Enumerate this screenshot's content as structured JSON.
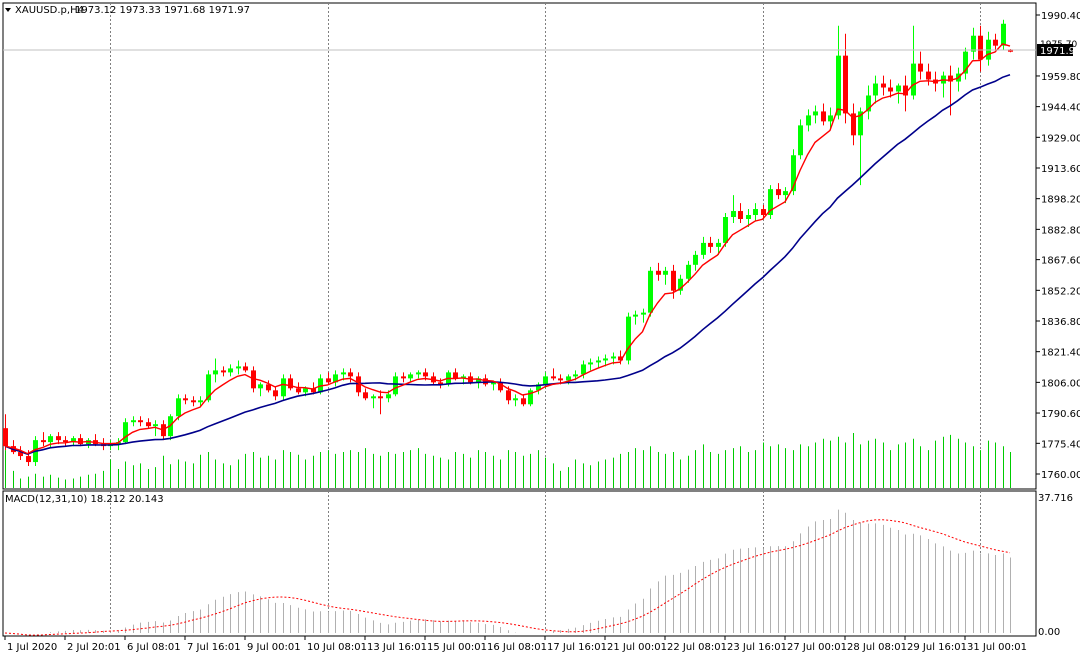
{
  "header": {
    "symbol": "XAUUSD.p,H4",
    "ohlc": "1973.12 1973.33 1971.68 1971.97",
    "current_price": "1971.97",
    "current_price_partial": "1975.70"
  },
  "macd": {
    "label": "MACD(12,31,10) 18.212 20.143",
    "top_label": "37.716",
    "bottom_label": "0.00",
    "bottom_label_overlap": "0.895"
  },
  "colors": {
    "background": "#ffffff",
    "bull": "#00ff00",
    "bear": "#ff0000",
    "fast_ma": "#ff0000",
    "slow_ma": "#00008b",
    "volume": "#00cc00",
    "macd_hist": "#b0b0b0",
    "macd_signal": "#ff0000",
    "grid": "#808080",
    "price_line": "#c0c0c0",
    "price_tag_bg": "#000000",
    "price_tag_fg": "#ffffff"
  },
  "chart_data": {
    "type": "candlestick",
    "price_axis": {
      "labels": [
        "1990.40",
        "1975.70",
        "1959.80",
        "1944.40",
        "1929.00",
        "1913.60",
        "1898.20",
        "1882.80",
        "1867.60",
        "1852.20",
        "1836.80",
        "1821.40",
        "1806.00",
        "1790.60",
        "1775.40",
        "1760.00"
      ],
      "min": 1760.0,
      "max": 1990.4
    },
    "time_axis": {
      "labels": [
        "1 Jul 2020",
        "2 Jul 20:01",
        "6 Jul 08:01",
        "7 Jul 16:01",
        "9 Jul 00:01",
        "10 Jul 08:01",
        "13 Jul 16:01",
        "15 Jul 00:01",
        "16 Jul 08:01",
        "17 Jul 16:01",
        "21 Jul 00:01",
        "22 Jul 08:01",
        "23 Jul 16:01",
        "27 Jul 00:01",
        "28 Jul 08:01",
        "29 Jul 16:01",
        "31 Jul 00:01"
      ],
      "label_bar_index": [
        0,
        8,
        16,
        24,
        32,
        40,
        48,
        56,
        64,
        72,
        80,
        88,
        96,
        104,
        112,
        120,
        128
      ],
      "separator_bar_index": [
        14,
        43,
        72,
        101,
        130
      ]
    },
    "candles": [
      {
        "o": 1783.0,
        "h": 1790.0,
        "l": 1772.0,
        "c": 1774.0
      },
      {
        "o": 1774.0,
        "h": 1777.0,
        "l": 1770.0,
        "c": 1771.0
      },
      {
        "o": 1771.0,
        "h": 1774.0,
        "l": 1767.0,
        "c": 1769.0
      },
      {
        "o": 1769.0,
        "h": 1772.0,
        "l": 1764.0,
        "c": 1766.0
      },
      {
        "o": 1766.0,
        "h": 1779.0,
        "l": 1764.0,
        "c": 1777.0
      },
      {
        "o": 1777.0,
        "h": 1781.0,
        "l": 1774.0,
        "c": 1776.0
      },
      {
        "o": 1776.0,
        "h": 1780.0,
        "l": 1773.0,
        "c": 1779.0
      },
      {
        "o": 1779.0,
        "h": 1781.0,
        "l": 1775.0,
        "c": 1777.0
      },
      {
        "o": 1777.0,
        "h": 1779.0,
        "l": 1774.0,
        "c": 1776.0
      },
      {
        "o": 1776.0,
        "h": 1779.0,
        "l": 1774.0,
        "c": 1778.0
      },
      {
        "o": 1778.0,
        "h": 1780.0,
        "l": 1774.0,
        "c": 1775.0
      },
      {
        "o": 1775.0,
        "h": 1778.0,
        "l": 1773.0,
        "c": 1777.0
      },
      {
        "o": 1777.0,
        "h": 1780.0,
        "l": 1774.0,
        "c": 1775.0
      },
      {
        "o": 1775.0,
        "h": 1778.0,
        "l": 1772.0,
        "c": 1774.0
      },
      {
        "o": 1774.0,
        "h": 1777.0,
        "l": 1772.0,
        "c": 1775.0
      },
      {
        "o": 1775.0,
        "h": 1778.0,
        "l": 1772.0,
        "c": 1776.0
      },
      {
        "o": 1776.0,
        "h": 1788.0,
        "l": 1775.0,
        "c": 1786.0
      },
      {
        "o": 1786.0,
        "h": 1789.0,
        "l": 1784.0,
        "c": 1787.0
      },
      {
        "o": 1787.0,
        "h": 1789.0,
        "l": 1784.0,
        "c": 1786.0
      },
      {
        "o": 1786.0,
        "h": 1788.0,
        "l": 1783.0,
        "c": 1784.0
      },
      {
        "o": 1784.0,
        "h": 1787.0,
        "l": 1779.0,
        "c": 1785.0
      },
      {
        "o": 1785.0,
        "h": 1787.0,
        "l": 1777.0,
        "c": 1779.0
      },
      {
        "o": 1779.0,
        "h": 1790.0,
        "l": 1777.0,
        "c": 1789.0
      },
      {
        "o": 1789.0,
        "h": 1800.0,
        "l": 1787.0,
        "c": 1798.0
      },
      {
        "o": 1798.0,
        "h": 1800.0,
        "l": 1795.0,
        "c": 1797.0
      },
      {
        "o": 1797.0,
        "h": 1799.0,
        "l": 1794.0,
        "c": 1796.0
      },
      {
        "o": 1796.0,
        "h": 1799.0,
        "l": 1794.0,
        "c": 1797.0
      },
      {
        "o": 1797.0,
        "h": 1812.0,
        "l": 1796.0,
        "c": 1810.0
      },
      {
        "o": 1810.0,
        "h": 1818.0,
        "l": 1806.0,
        "c": 1812.0
      },
      {
        "o": 1812.0,
        "h": 1814.0,
        "l": 1809.0,
        "c": 1811.0
      },
      {
        "o": 1811.0,
        "h": 1815.0,
        "l": 1809.0,
        "c": 1813.0
      },
      {
        "o": 1813.0,
        "h": 1817.0,
        "l": 1810.0,
        "c": 1814.0
      },
      {
        "o": 1814.0,
        "h": 1816.0,
        "l": 1811.0,
        "c": 1812.0
      },
      {
        "o": 1812.0,
        "h": 1814.0,
        "l": 1801.0,
        "c": 1803.0
      },
      {
        "o": 1803.0,
        "h": 1806.0,
        "l": 1799.0,
        "c": 1805.0
      },
      {
        "o": 1805.0,
        "h": 1807.0,
        "l": 1801.0,
        "c": 1802.0
      },
      {
        "o": 1802.0,
        "h": 1804.0,
        "l": 1797.0,
        "c": 1799.0
      },
      {
        "o": 1799.0,
        "h": 1810.0,
        "l": 1797.0,
        "c": 1808.0
      },
      {
        "o": 1808.0,
        "h": 1810.0,
        "l": 1802.0,
        "c": 1803.0
      },
      {
        "o": 1803.0,
        "h": 1806.0,
        "l": 1800.0,
        "c": 1801.0
      },
      {
        "o": 1801.0,
        "h": 1804.0,
        "l": 1799.0,
        "c": 1803.0
      },
      {
        "o": 1803.0,
        "h": 1806.0,
        "l": 1800.0,
        "c": 1801.0
      },
      {
        "o": 1801.0,
        "h": 1810.0,
        "l": 1800.0,
        "c": 1808.0
      },
      {
        "o": 1808.0,
        "h": 1811.0,
        "l": 1805.0,
        "c": 1806.0
      },
      {
        "o": 1806.0,
        "h": 1812.0,
        "l": 1804.0,
        "c": 1810.0
      },
      {
        "o": 1810.0,
        "h": 1813.0,
        "l": 1807.0,
        "c": 1811.0
      },
      {
        "o": 1811.0,
        "h": 1813.0,
        "l": 1806.0,
        "c": 1809.0
      },
      {
        "o": 1809.0,
        "h": 1811.0,
        "l": 1799.0,
        "c": 1801.0
      },
      {
        "o": 1801.0,
        "h": 1803.0,
        "l": 1797.0,
        "c": 1798.0
      },
      {
        "o": 1798.0,
        "h": 1800.0,
        "l": 1793.0,
        "c": 1799.0
      },
      {
        "o": 1799.0,
        "h": 1802.0,
        "l": 1790.0,
        "c": 1798.0
      },
      {
        "o": 1798.0,
        "h": 1802.0,
        "l": 1796.0,
        "c": 1800.0
      },
      {
        "o": 1800.0,
        "h": 1811.0,
        "l": 1799.0,
        "c": 1809.0
      },
      {
        "o": 1809.0,
        "h": 1811.0,
        "l": 1806.0,
        "c": 1808.0
      },
      {
        "o": 1808.0,
        "h": 1811.0,
        "l": 1806.0,
        "c": 1810.0
      },
      {
        "o": 1810.0,
        "h": 1812.0,
        "l": 1808.0,
        "c": 1811.0
      },
      {
        "o": 1811.0,
        "h": 1813.0,
        "l": 1807.0,
        "c": 1809.0
      },
      {
        "o": 1809.0,
        "h": 1811.0,
        "l": 1805.0,
        "c": 1806.0
      },
      {
        "o": 1806.0,
        "h": 1808.0,
        "l": 1803.0,
        "c": 1805.0
      },
      {
        "o": 1805.0,
        "h": 1812.0,
        "l": 1804.0,
        "c": 1811.0
      },
      {
        "o": 1811.0,
        "h": 1813.0,
        "l": 1807.0,
        "c": 1808.0
      },
      {
        "o": 1808.0,
        "h": 1810.0,
        "l": 1805.0,
        "c": 1809.0
      },
      {
        "o": 1809.0,
        "h": 1811.0,
        "l": 1805.0,
        "c": 1806.0
      },
      {
        "o": 1806.0,
        "h": 1809.0,
        "l": 1803.0,
        "c": 1808.0
      },
      {
        "o": 1808.0,
        "h": 1810.0,
        "l": 1804.0,
        "c": 1805.0
      },
      {
        "o": 1805.0,
        "h": 1807.0,
        "l": 1802.0,
        "c": 1806.0
      },
      {
        "o": 1806.0,
        "h": 1808.0,
        "l": 1801.0,
        "c": 1802.0
      },
      {
        "o": 1802.0,
        "h": 1804.0,
        "l": 1795.0,
        "c": 1797.0
      },
      {
        "o": 1797.0,
        "h": 1800.0,
        "l": 1794.0,
        "c": 1798.0
      },
      {
        "o": 1798.0,
        "h": 1800.0,
        "l": 1794.0,
        "c": 1795.0
      },
      {
        "o": 1795.0,
        "h": 1803.0,
        "l": 1794.0,
        "c": 1802.0
      },
      {
        "o": 1802.0,
        "h": 1806.0,
        "l": 1800.0,
        "c": 1805.0
      },
      {
        "o": 1805.0,
        "h": 1811.0,
        "l": 1803.0,
        "c": 1809.0
      },
      {
        "o": 1809.0,
        "h": 1813.0,
        "l": 1807.0,
        "c": 1808.0
      },
      {
        "o": 1808.0,
        "h": 1810.0,
        "l": 1805.0,
        "c": 1807.0
      },
      {
        "o": 1807.0,
        "h": 1810.0,
        "l": 1805.0,
        "c": 1809.0
      },
      {
        "o": 1809.0,
        "h": 1812.0,
        "l": 1807.0,
        "c": 1810.0
      },
      {
        "o": 1810.0,
        "h": 1817.0,
        "l": 1808.0,
        "c": 1815.0
      },
      {
        "o": 1815.0,
        "h": 1818.0,
        "l": 1812.0,
        "c": 1816.0
      },
      {
        "o": 1816.0,
        "h": 1819.0,
        "l": 1813.0,
        "c": 1817.0
      },
      {
        "o": 1817.0,
        "h": 1820.0,
        "l": 1814.0,
        "c": 1818.0
      },
      {
        "o": 1818.0,
        "h": 1821.0,
        "l": 1815.0,
        "c": 1819.0
      },
      {
        "o": 1819.0,
        "h": 1822.0,
        "l": 1815.0,
        "c": 1817.0
      },
      {
        "o": 1817.0,
        "h": 1841.0,
        "l": 1815.0,
        "c": 1839.0
      },
      {
        "o": 1839.0,
        "h": 1842.0,
        "l": 1835.0,
        "c": 1840.0
      },
      {
        "o": 1840.0,
        "h": 1843.0,
        "l": 1836.0,
        "c": 1841.0
      },
      {
        "o": 1841.0,
        "h": 1864.0,
        "l": 1839.0,
        "c": 1862.0
      },
      {
        "o": 1862.0,
        "h": 1866.0,
        "l": 1857.0,
        "c": 1860.0
      },
      {
        "o": 1860.0,
        "h": 1864.0,
        "l": 1855.0,
        "c": 1862.0
      },
      {
        "o": 1862.0,
        "h": 1865.0,
        "l": 1848.0,
        "c": 1852.0
      },
      {
        "o": 1852.0,
        "h": 1860.0,
        "l": 1850.0,
        "c": 1858.0
      },
      {
        "o": 1858.0,
        "h": 1867.0,
        "l": 1856.0,
        "c": 1865.0
      },
      {
        "o": 1865.0,
        "h": 1872.0,
        "l": 1862.0,
        "c": 1870.0
      },
      {
        "o": 1870.0,
        "h": 1879.0,
        "l": 1868.0,
        "c": 1876.0
      },
      {
        "o": 1876.0,
        "h": 1879.0,
        "l": 1871.0,
        "c": 1874.0
      },
      {
        "o": 1874.0,
        "h": 1878.0,
        "l": 1870.0,
        "c": 1876.0
      },
      {
        "o": 1876.0,
        "h": 1891.0,
        "l": 1874.0,
        "c": 1889.0
      },
      {
        "o": 1889.0,
        "h": 1900.0,
        "l": 1886.0,
        "c": 1892.0
      },
      {
        "o": 1892.0,
        "h": 1896.0,
        "l": 1886.0,
        "c": 1888.0
      },
      {
        "o": 1888.0,
        "h": 1893.0,
        "l": 1884.0,
        "c": 1890.0
      },
      {
        "o": 1890.0,
        "h": 1896.0,
        "l": 1887.0,
        "c": 1893.0
      },
      {
        "o": 1893.0,
        "h": 1895.0,
        "l": 1888.0,
        "c": 1890.0
      },
      {
        "o": 1890.0,
        "h": 1905.0,
        "l": 1888.0,
        "c": 1903.0
      },
      {
        "o": 1903.0,
        "h": 1906.0,
        "l": 1898.0,
        "c": 1900.0
      },
      {
        "o": 1900.0,
        "h": 1904.0,
        "l": 1896.0,
        "c": 1902.0
      },
      {
        "o": 1902.0,
        "h": 1923.0,
        "l": 1900.0,
        "c": 1920.0
      },
      {
        "o": 1920.0,
        "h": 1938.0,
        "l": 1918.0,
        "c": 1935.0
      },
      {
        "o": 1935.0,
        "h": 1943.0,
        "l": 1932.0,
        "c": 1940.0
      },
      {
        "o": 1940.0,
        "h": 1945.0,
        "l": 1936.0,
        "c": 1942.0
      },
      {
        "o": 1942.0,
        "h": 1946.0,
        "l": 1935.0,
        "c": 1937.0
      },
      {
        "o": 1937.0,
        "h": 1944.0,
        "l": 1933.0,
        "c": 1940.0
      },
      {
        "o": 1940.0,
        "h": 1985.0,
        "l": 1938.0,
        "c": 1970.0
      },
      {
        "o": 1970.0,
        "h": 1981.0,
        "l": 1936.0,
        "c": 1941.0
      },
      {
        "o": 1941.0,
        "h": 1946.0,
        "l": 1925.0,
        "c": 1930.0
      },
      {
        "o": 1930.0,
        "h": 1944.0,
        "l": 1905.0,
        "c": 1942.0
      },
      {
        "o": 1942.0,
        "h": 1955.0,
        "l": 1938.0,
        "c": 1950.0
      },
      {
        "o": 1950.0,
        "h": 1960.0,
        "l": 1946.0,
        "c": 1956.0
      },
      {
        "o": 1956.0,
        "h": 1960.0,
        "l": 1950.0,
        "c": 1954.0
      },
      {
        "o": 1954.0,
        "h": 1958.0,
        "l": 1949.0,
        "c": 1952.0
      },
      {
        "o": 1952.0,
        "h": 1956.0,
        "l": 1946.0,
        "c": 1955.0
      },
      {
        "o": 1955.0,
        "h": 1960.0,
        "l": 1942.0,
        "c": 1950.0
      },
      {
        "o": 1950.0,
        "h": 1985.0,
        "l": 1948.0,
        "c": 1966.0
      },
      {
        "o": 1966.0,
        "h": 1972.0,
        "l": 1958.0,
        "c": 1962.0
      },
      {
        "o": 1962.0,
        "h": 1966.0,
        "l": 1955.0,
        "c": 1958.0
      },
      {
        "o": 1958.0,
        "h": 1962.0,
        "l": 1952.0,
        "c": 1956.0
      },
      {
        "o": 1956.0,
        "h": 1962.0,
        "l": 1949.0,
        "c": 1960.0
      },
      {
        "o": 1960.0,
        "h": 1965.0,
        "l": 1940.0,
        "c": 1957.0
      },
      {
        "o": 1957.0,
        "h": 1964.0,
        "l": 1952.0,
        "c": 1961.0
      },
      {
        "o": 1961.0,
        "h": 1974.0,
        "l": 1958.0,
        "c": 1972.0
      },
      {
        "o": 1972.0,
        "h": 1984.0,
        "l": 1968.0,
        "c": 1980.0
      },
      {
        "o": 1980.0,
        "h": 1985.0,
        "l": 1962.0,
        "c": 1968.0
      },
      {
        "o": 1968.0,
        "h": 1982.0,
        "l": 1965.0,
        "c": 1978.0
      },
      {
        "o": 1978.0,
        "h": 1981.0,
        "l": 1973.0,
        "c": 1975.0
      },
      {
        "o": 1975.0,
        "h": 1988.0,
        "l": 1973.0,
        "c": 1986.0
      },
      {
        "o": 1973.12,
        "h": 1973.33,
        "l": 1971.68,
        "c": 1971.97
      }
    ],
    "volume": [
      40,
      18,
      10,
      12,
      15,
      12,
      14,
      11,
      9,
      10,
      12,
      14,
      15,
      18,
      30,
      20,
      28,
      24,
      26,
      20,
      22,
      34,
      25,
      30,
      28,
      26,
      35,
      38,
      30,
      26,
      24,
      30,
      36,
      38,
      32,
      34,
      30,
      40,
      38,
      35,
      30,
      34,
      38,
      40,
      36,
      38,
      40,
      38,
      42,
      36,
      34,
      38,
      36,
      38,
      40,
      42,
      36,
      34,
      32,
      30,
      38,
      36,
      32,
      40,
      38,
      34,
      30,
      40,
      38,
      34,
      36,
      40,
      32,
      26,
      18,
      22,
      30,
      26,
      24,
      28,
      30,
      32,
      36,
      38,
      42,
      40,
      44,
      38,
      36,
      38,
      30,
      34,
      40,
      46,
      38,
      36,
      40,
      42,
      44,
      38,
      40,
      48,
      44,
      46,
      42,
      40,
      46,
      44,
      48,
      52,
      50,
      54,
      48,
      58,
      46,
      50,
      52,
      48,
      40,
      46,
      48,
      52,
      44,
      40,
      50,
      54,
      56,
      52,
      48,
      44,
      40,
      50,
      48,
      44,
      38
    ],
    "indicators": {
      "ma_fast_color": "red",
      "ma_slow_color": "darkblue",
      "macd_params": [
        12,
        31,
        10
      ],
      "macd_value": 18.212,
      "macd_signal": 20.143,
      "macd_axis": {
        "max": 37.716,
        "min": 0.0
      }
    }
  }
}
